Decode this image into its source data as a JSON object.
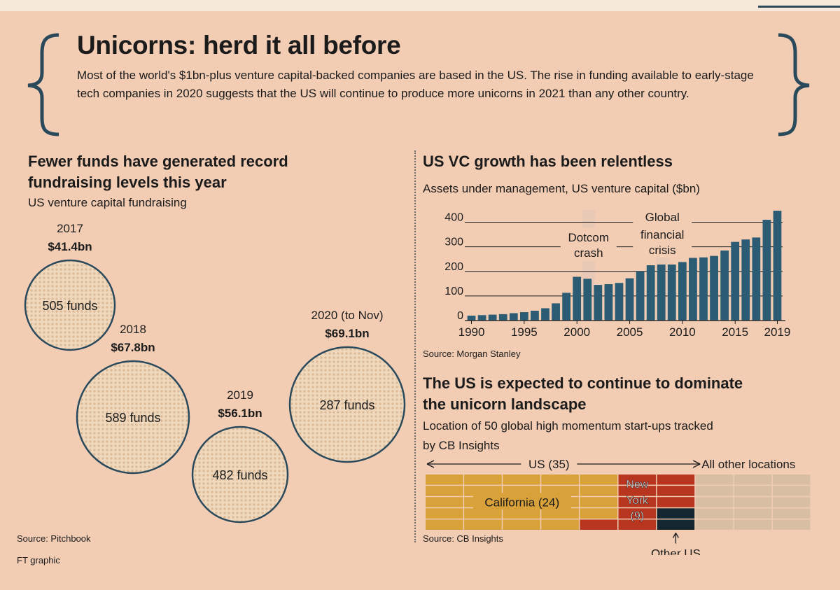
{
  "headline": "Unicorns: herd it all before",
  "standfirst": "Most of the world's $1bn-plus venture capital-backed companies are based in the US. The rise in funding available to early-stage tech companies in 2020 suggests that the US will continue to produce more unicorns in 2021 than any other country.",
  "colors": {
    "background": "#f2cdb4",
    "bar": "#2b5c73",
    "circle_border": "#2a4a5c",
    "california": "#d9a13a",
    "new_york": "#b8361f",
    "other_us": "#14262f",
    "other_locations": "#d8bfa4"
  },
  "left_panel": {
    "title_line1": "Fewer funds have generated record",
    "title_line2": "fundraising levels this year",
    "subtitle": "US venture capital fundraising",
    "source": "Source: Pitchbook",
    "credit": "FT graphic"
  },
  "top_right": {
    "title": "US VC growth has been relentless",
    "subtitle": "Assets under management, US venture capital ($bn)",
    "source": "Source: Morgan Stanley",
    "annotations": {
      "dotcom_line1": "Dotcom",
      "dotcom_line2": "crash",
      "gfc_line1": "Global",
      "gfc_line2": "financial",
      "gfc_line3": "crisis"
    }
  },
  "bottom_right": {
    "title_line1": "The US is expected to continue to dominate",
    "title_line2": "the unicorn landscape",
    "subtitle_line1": "Location of 50 global high momentum start-ups tracked",
    "subtitle_line2": "by CB Insights",
    "source": "Source: CB Insights",
    "us_label": "US (35)",
    "other_locations_label": "All other locations",
    "california_label": "California (24)",
    "new_york_line1": "New",
    "new_york_line2": "York",
    "new_york_line3": "(9)",
    "other_us_label": "Other US"
  },
  "chart_data": [
    {
      "type": "scatter",
      "title": "Fewer funds have generated record fundraising levels this year",
      "subtitle": "US venture capital fundraising",
      "points": [
        {
          "year": "2017",
          "amount": "$41.4bn",
          "value_bn": 41.4,
          "funds": 505,
          "funds_label": "505 funds"
        },
        {
          "year": "2018",
          "amount": "$67.8bn",
          "value_bn": 67.8,
          "funds": 589,
          "funds_label": "589 funds"
        },
        {
          "year": "2019",
          "amount": "$56.1bn",
          "value_bn": 56.1,
          "funds": 482,
          "funds_label": "482 funds"
        },
        {
          "year": "2020 (to Nov)",
          "amount": "$69.1bn",
          "value_bn": 69.1,
          "funds": 287,
          "funds_label": "287 funds"
        }
      ]
    },
    {
      "type": "bar",
      "title": "US VC growth has been relentless",
      "ylabel": "Assets under management, US venture capital ($bn)",
      "categories": [
        1990,
        1991,
        1992,
        1993,
        1994,
        1995,
        1996,
        1997,
        1998,
        1999,
        2000,
        2001,
        2002,
        2003,
        2004,
        2005,
        2006,
        2007,
        2008,
        2009,
        2010,
        2011,
        2012,
        2013,
        2014,
        2015,
        2016,
        2017,
        2018,
        2019
      ],
      "values": [
        20,
        22,
        24,
        26,
        30,
        34,
        40,
        50,
        70,
        113,
        178,
        170,
        145,
        148,
        153,
        172,
        200,
        225,
        228,
        228,
        238,
        255,
        257,
        263,
        285,
        320,
        330,
        338,
        410,
        447
      ],
      "ylim": [
        0,
        450
      ],
      "yticks": [
        0,
        100,
        200,
        300,
        400
      ],
      "xticks": [
        "1990",
        "1995",
        "2000",
        "2005",
        "2010",
        "2015",
        "2019"
      ],
      "grid": false
    },
    {
      "type": "waffle",
      "title": "The US is expected to continue to dominate the unicorn landscape",
      "subtitle": "Location of 50 global high momentum start-ups tracked by CB Insights",
      "total": 50,
      "groups": [
        {
          "name": "California",
          "count": 24
        },
        {
          "name": "New York",
          "count": 9
        },
        {
          "name": "Other US",
          "count": 2
        },
        {
          "name": "All other locations",
          "count": 15
        }
      ]
    }
  ]
}
